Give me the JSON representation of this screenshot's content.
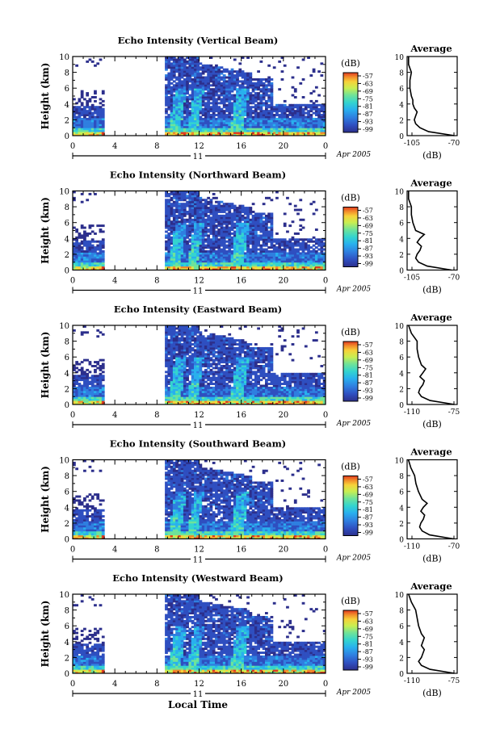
{
  "figure": {
    "time_axis_label": "Local Time",
    "date_label": "Apr 2005",
    "day_label": "11",
    "average_title": "Average",
    "colorbar_unit": "(dB)",
    "average_unit": "(dB)",
    "y_label": "Height (km)",
    "x_ticks": [
      "0",
      "4",
      "8",
      "12",
      "16",
      "20",
      "0"
    ],
    "height_ticks": [
      "0",
      "2",
      "4",
      "6",
      "8",
      "10"
    ],
    "colorbar_ticks": [
      "-57",
      "-63",
      "-69",
      "-75",
      "-81",
      "-87",
      "-93",
      "-99"
    ],
    "colors": {
      "scale": [
        "#2c2f8c",
        "#2f4fc0",
        "#2f7fe0",
        "#29b0ee",
        "#34d4cf",
        "#6ee39a",
        "#c8ef52",
        "#f7d23a",
        "#f28a2a",
        "#e03a20"
      ],
      "axis": "#000000",
      "missing": "#ffffff"
    }
  },
  "chart_data": [
    {
      "type": "heatmap",
      "title": "Echo Intensity (Vertical Beam)",
      "xlabel": "",
      "ylabel": "Height (km)",
      "xlim": [
        0,
        24
      ],
      "ylim": [
        0,
        10
      ],
      "data_gap_hours": [
        3,
        8.7
      ],
      "colorbar": {
        "unit": "(dB)",
        "range": [
          -99,
          -57
        ]
      },
      "profile": {
        "title": "Average",
        "xlabel": "(dB)",
        "xlim": [
          -105,
          -70
        ],
        "x_tick_labels": [
          "-105",
          "-70"
        ],
        "height_km": [
          0,
          0.5,
          1,
          1.5,
          2,
          2.5,
          3,
          3.5,
          4,
          4.5,
          5,
          6,
          7,
          8,
          9,
          10
        ],
        "values_db": [
          -72,
          -90,
          -96,
          -99,
          -100,
          -99,
          -98,
          -100,
          -101,
          -101,
          -102,
          -103,
          -103,
          -102,
          -104,
          -104
        ]
      }
    },
    {
      "type": "heatmap",
      "title": "Echo Intensity (Northward Beam)",
      "xlabel": "",
      "ylabel": "Height (km)",
      "xlim": [
        0,
        24
      ],
      "ylim": [
        0,
        10
      ],
      "data_gap_hours": [
        3,
        8.7
      ],
      "colorbar": {
        "unit": "(dB)",
        "range": [
          -99,
          -57
        ]
      },
      "profile": {
        "title": "Average",
        "xlabel": "(dB)",
        "xlim": [
          -105,
          -70
        ],
        "x_tick_labels": [
          "-105",
          "-70"
        ],
        "height_km": [
          0,
          0.5,
          1,
          1.5,
          2,
          2.5,
          3,
          3.5,
          4,
          4.5,
          5,
          6,
          7,
          8,
          9,
          10
        ],
        "values_db": [
          -74,
          -91,
          -97,
          -99,
          -98,
          -96,
          -95,
          -98,
          -96,
          -93,
          -99,
          -101,
          -102,
          -102,
          -104,
          -104
        ]
      }
    },
    {
      "type": "heatmap",
      "title": "Echo Intensity (Eastward Beam)",
      "xlabel": "",
      "ylabel": "Height (km)",
      "xlim": [
        0,
        24
      ],
      "ylim": [
        0,
        10
      ],
      "data_gap_hours": [
        3,
        8.7
      ],
      "colorbar": {
        "unit": "(dB)",
        "range": [
          -99,
          -57
        ]
      },
      "profile": {
        "title": "Average",
        "xlabel": "(dB)",
        "xlim": [
          -110,
          -75
        ],
        "x_tick_labels": [
          "-110",
          "-75"
        ],
        "height_km": [
          0,
          0.5,
          1,
          1.5,
          2,
          2.5,
          3,
          3.5,
          4,
          4.5,
          5,
          6,
          7,
          8,
          9,
          10
        ],
        "values_db": [
          -77,
          -94,
          -100,
          -102,
          -101,
          -99,
          -98,
          -101,
          -99,
          -97,
          -100,
          -102,
          -103,
          -103,
          -107,
          -109
        ]
      }
    },
    {
      "type": "heatmap",
      "title": "Echo Intensity (Southward Beam)",
      "xlabel": "",
      "ylabel": "Height (km)",
      "xlim": [
        0,
        24
      ],
      "ylim": [
        0,
        10
      ],
      "data_gap_hours": [
        3,
        8.7
      ],
      "colorbar": {
        "unit": "(dB)",
        "range": [
          -99,
          -57
        ]
      },
      "profile": {
        "title": "Average",
        "xlabel": "(dB)",
        "xlim": [
          -110,
          -70
        ],
        "x_tick_labels": [
          "-110",
          "-70"
        ],
        "height_km": [
          0,
          0.5,
          1,
          1.5,
          2,
          2.5,
          3,
          3.5,
          4,
          4.5,
          5,
          6,
          7,
          8,
          9,
          10
        ],
        "values_db": [
          -73,
          -92,
          -98,
          -100,
          -99,
          -97,
          -96,
          -99,
          -97,
          -94,
          -98,
          -101,
          -103,
          -104,
          -107,
          -109
        ]
      }
    },
    {
      "type": "heatmap",
      "title": "Echo Intensity (Westward Beam)",
      "xlabel": "Local Time",
      "ylabel": "Height (km)",
      "xlim": [
        0,
        24
      ],
      "ylim": [
        0,
        10
      ],
      "data_gap_hours": [
        3,
        8.7
      ],
      "colorbar": {
        "unit": "(dB)",
        "range": [
          -99,
          -57
        ]
      },
      "profile": {
        "title": "Average",
        "xlabel": "(dB)",
        "xlim": [
          -110,
          -75
        ],
        "x_tick_labels": [
          "-110",
          "-75"
        ],
        "height_km": [
          0,
          0.5,
          1,
          1.5,
          2,
          2.5,
          3,
          3.5,
          4,
          4.5,
          5,
          6,
          7,
          8,
          9,
          10
        ],
        "values_db": [
          -77,
          -94,
          -100,
          -102,
          -100,
          -99,
          -98,
          -100,
          -99,
          -98,
          -100,
          -102,
          -103,
          -104,
          -107,
          -109
        ]
      }
    }
  ]
}
